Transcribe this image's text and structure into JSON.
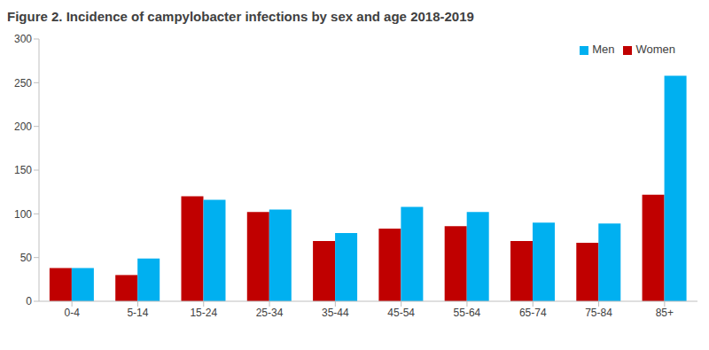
{
  "chart_data": {
    "type": "bar",
    "title": "Figure 2. Incidence of campylobacter infections by sex and age 2018-2019",
    "categories": [
      "0-4",
      "5-14",
      "15-24",
      "25-34",
      "35-44",
      "45-54",
      "55-64",
      "65-74",
      "75-84",
      "85+"
    ],
    "series": [
      {
        "name": "Women",
        "color": "#c00000",
        "values": [
          38,
          30,
          120,
          102,
          69,
          83,
          86,
          69,
          67,
          122
        ]
      },
      {
        "name": "Men",
        "color": "#00b0f0",
        "values": [
          38,
          49,
          116,
          105,
          78,
          108,
          102,
          90,
          89,
          258
        ]
      }
    ],
    "ylim": [
      0,
      300
    ],
    "yticks": [
      0,
      50,
      100,
      150,
      200,
      250,
      300
    ],
    "grid": false,
    "legend": "upper right"
  }
}
